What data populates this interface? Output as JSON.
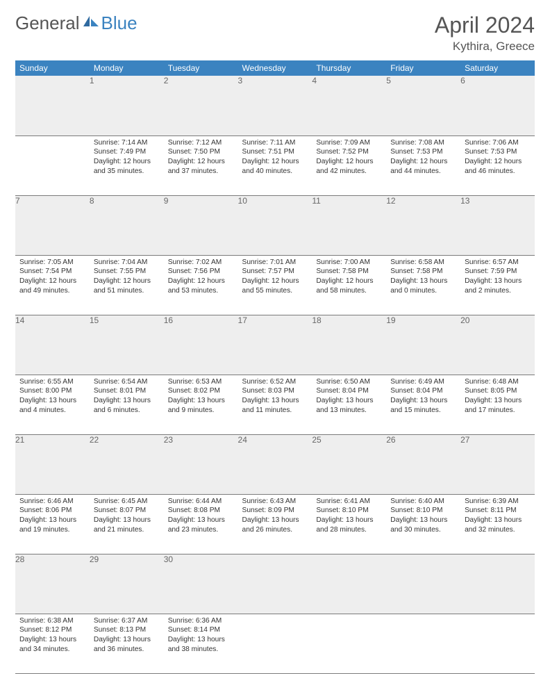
{
  "logo": {
    "word1": "General",
    "word2": "Blue"
  },
  "title": "April 2024",
  "location": "Kythira, Greece",
  "day_headers": [
    "Sunday",
    "Monday",
    "Tuesday",
    "Wednesday",
    "Thursday",
    "Friday",
    "Saturday"
  ],
  "colors": {
    "header_bg": "#3b83c0",
    "header_text": "#ffffff",
    "daynum_bg": "#eeeeee",
    "daynum_text": "#666666",
    "body_text": "#333333",
    "rule": "#7a7a7a",
    "logo_gray": "#555555",
    "logo_blue": "#3b83c0"
  },
  "weeks": [
    [
      null,
      {
        "n": "1",
        "sr": "Sunrise: 7:14 AM",
        "ss": "Sunset: 7:49 PM",
        "d1": "Daylight: 12 hours",
        "d2": "and 35 minutes."
      },
      {
        "n": "2",
        "sr": "Sunrise: 7:12 AM",
        "ss": "Sunset: 7:50 PM",
        "d1": "Daylight: 12 hours",
        "d2": "and 37 minutes."
      },
      {
        "n": "3",
        "sr": "Sunrise: 7:11 AM",
        "ss": "Sunset: 7:51 PM",
        "d1": "Daylight: 12 hours",
        "d2": "and 40 minutes."
      },
      {
        "n": "4",
        "sr": "Sunrise: 7:09 AM",
        "ss": "Sunset: 7:52 PM",
        "d1": "Daylight: 12 hours",
        "d2": "and 42 minutes."
      },
      {
        "n": "5",
        "sr": "Sunrise: 7:08 AM",
        "ss": "Sunset: 7:53 PM",
        "d1": "Daylight: 12 hours",
        "d2": "and 44 minutes."
      },
      {
        "n": "6",
        "sr": "Sunrise: 7:06 AM",
        "ss": "Sunset: 7:53 PM",
        "d1": "Daylight: 12 hours",
        "d2": "and 46 minutes."
      }
    ],
    [
      {
        "n": "7",
        "sr": "Sunrise: 7:05 AM",
        "ss": "Sunset: 7:54 PM",
        "d1": "Daylight: 12 hours",
        "d2": "and 49 minutes."
      },
      {
        "n": "8",
        "sr": "Sunrise: 7:04 AM",
        "ss": "Sunset: 7:55 PM",
        "d1": "Daylight: 12 hours",
        "d2": "and 51 minutes."
      },
      {
        "n": "9",
        "sr": "Sunrise: 7:02 AM",
        "ss": "Sunset: 7:56 PM",
        "d1": "Daylight: 12 hours",
        "d2": "and 53 minutes."
      },
      {
        "n": "10",
        "sr": "Sunrise: 7:01 AM",
        "ss": "Sunset: 7:57 PM",
        "d1": "Daylight: 12 hours",
        "d2": "and 55 minutes."
      },
      {
        "n": "11",
        "sr": "Sunrise: 7:00 AM",
        "ss": "Sunset: 7:58 PM",
        "d1": "Daylight: 12 hours",
        "d2": "and 58 minutes."
      },
      {
        "n": "12",
        "sr": "Sunrise: 6:58 AM",
        "ss": "Sunset: 7:58 PM",
        "d1": "Daylight: 13 hours",
        "d2": "and 0 minutes."
      },
      {
        "n": "13",
        "sr": "Sunrise: 6:57 AM",
        "ss": "Sunset: 7:59 PM",
        "d1": "Daylight: 13 hours",
        "d2": "and 2 minutes."
      }
    ],
    [
      {
        "n": "14",
        "sr": "Sunrise: 6:55 AM",
        "ss": "Sunset: 8:00 PM",
        "d1": "Daylight: 13 hours",
        "d2": "and 4 minutes."
      },
      {
        "n": "15",
        "sr": "Sunrise: 6:54 AM",
        "ss": "Sunset: 8:01 PM",
        "d1": "Daylight: 13 hours",
        "d2": "and 6 minutes."
      },
      {
        "n": "16",
        "sr": "Sunrise: 6:53 AM",
        "ss": "Sunset: 8:02 PM",
        "d1": "Daylight: 13 hours",
        "d2": "and 9 minutes."
      },
      {
        "n": "17",
        "sr": "Sunrise: 6:52 AM",
        "ss": "Sunset: 8:03 PM",
        "d1": "Daylight: 13 hours",
        "d2": "and 11 minutes."
      },
      {
        "n": "18",
        "sr": "Sunrise: 6:50 AM",
        "ss": "Sunset: 8:04 PM",
        "d1": "Daylight: 13 hours",
        "d2": "and 13 minutes."
      },
      {
        "n": "19",
        "sr": "Sunrise: 6:49 AM",
        "ss": "Sunset: 8:04 PM",
        "d1": "Daylight: 13 hours",
        "d2": "and 15 minutes."
      },
      {
        "n": "20",
        "sr": "Sunrise: 6:48 AM",
        "ss": "Sunset: 8:05 PM",
        "d1": "Daylight: 13 hours",
        "d2": "and 17 minutes."
      }
    ],
    [
      {
        "n": "21",
        "sr": "Sunrise: 6:46 AM",
        "ss": "Sunset: 8:06 PM",
        "d1": "Daylight: 13 hours",
        "d2": "and 19 minutes."
      },
      {
        "n": "22",
        "sr": "Sunrise: 6:45 AM",
        "ss": "Sunset: 8:07 PM",
        "d1": "Daylight: 13 hours",
        "d2": "and 21 minutes."
      },
      {
        "n": "23",
        "sr": "Sunrise: 6:44 AM",
        "ss": "Sunset: 8:08 PM",
        "d1": "Daylight: 13 hours",
        "d2": "and 23 minutes."
      },
      {
        "n": "24",
        "sr": "Sunrise: 6:43 AM",
        "ss": "Sunset: 8:09 PM",
        "d1": "Daylight: 13 hours",
        "d2": "and 26 minutes."
      },
      {
        "n": "25",
        "sr": "Sunrise: 6:41 AM",
        "ss": "Sunset: 8:10 PM",
        "d1": "Daylight: 13 hours",
        "d2": "and 28 minutes."
      },
      {
        "n": "26",
        "sr": "Sunrise: 6:40 AM",
        "ss": "Sunset: 8:10 PM",
        "d1": "Daylight: 13 hours",
        "d2": "and 30 minutes."
      },
      {
        "n": "27",
        "sr": "Sunrise: 6:39 AM",
        "ss": "Sunset: 8:11 PM",
        "d1": "Daylight: 13 hours",
        "d2": "and 32 minutes."
      }
    ],
    [
      {
        "n": "28",
        "sr": "Sunrise: 6:38 AM",
        "ss": "Sunset: 8:12 PM",
        "d1": "Daylight: 13 hours",
        "d2": "and 34 minutes."
      },
      {
        "n": "29",
        "sr": "Sunrise: 6:37 AM",
        "ss": "Sunset: 8:13 PM",
        "d1": "Daylight: 13 hours",
        "d2": "and 36 minutes."
      },
      {
        "n": "30",
        "sr": "Sunrise: 6:36 AM",
        "ss": "Sunset: 8:14 PM",
        "d1": "Daylight: 13 hours",
        "d2": "and 38 minutes."
      },
      null,
      null,
      null,
      null
    ]
  ]
}
